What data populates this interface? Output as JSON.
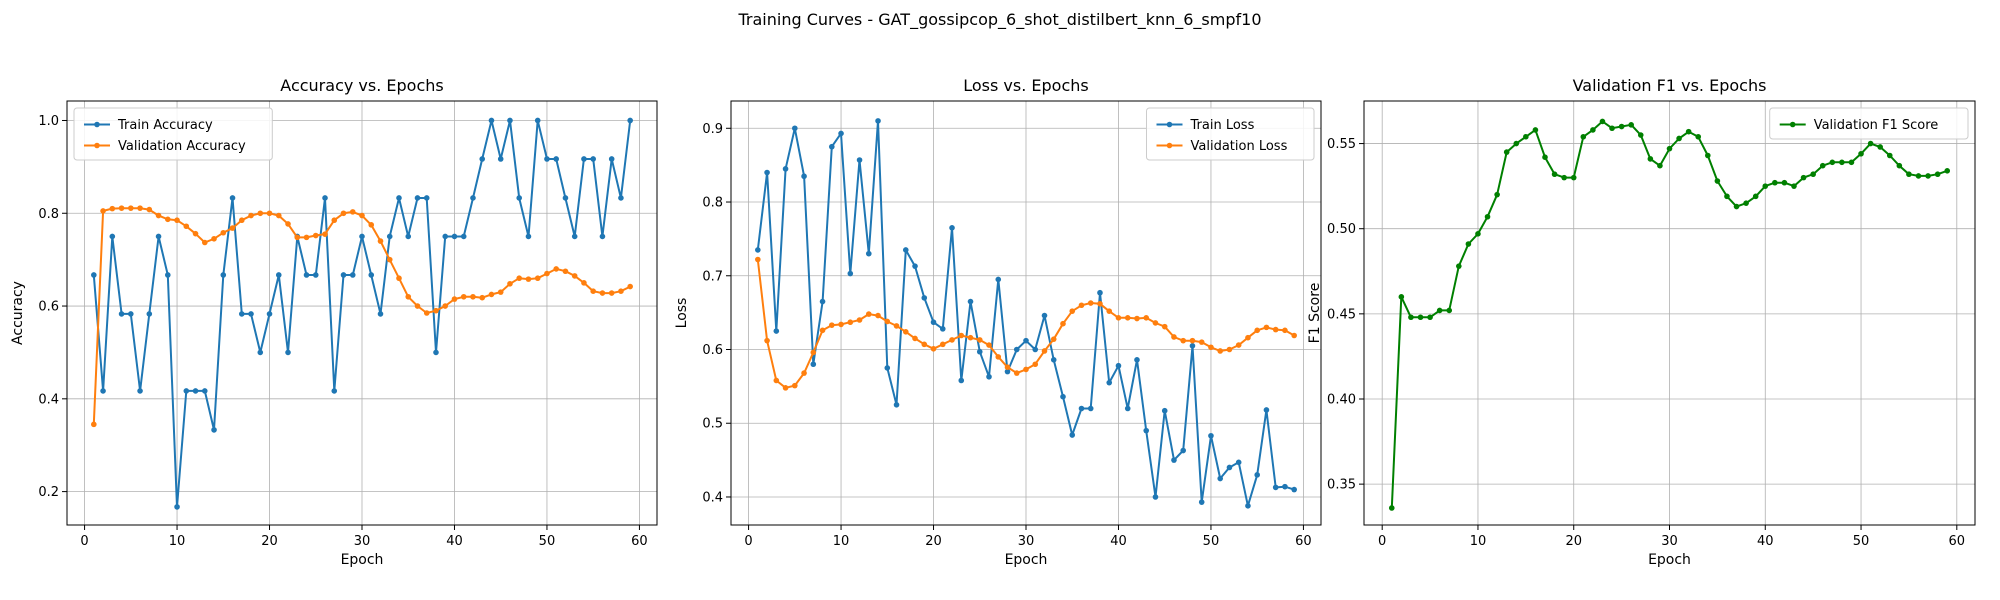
{
  "figure": {
    "title": "Training Curves - GAT_gossipcop_6_shot_distilbert_knn_6_smpf10"
  },
  "colors": {
    "train": "#1f77b4",
    "validation": "#ff7f0e",
    "f1": "#008000",
    "grid": "#b0b0b0"
  },
  "chart_data": [
    {
      "type": "line",
      "title": "Accuracy vs. Epochs",
      "xlabel": "Epoch",
      "ylabel": "Accuracy",
      "xlim": [
        -1.9,
        61.9
      ],
      "ylim": [
        0.128,
        1.042
      ],
      "xticks": [
        0,
        10,
        20,
        30,
        40,
        50,
        60
      ],
      "yticks": [
        0.2,
        0.4,
        0.6,
        0.8,
        1.0
      ],
      "ytick_labels": [
        "0.2",
        "0.4",
        "0.6",
        "0.8",
        "1.0"
      ],
      "grid": true,
      "legend_position": "upper-left",
      "x": [
        1,
        2,
        3,
        4,
        5,
        6,
        7,
        8,
        9,
        10,
        11,
        12,
        13,
        14,
        15,
        16,
        17,
        18,
        19,
        20,
        21,
        22,
        23,
        24,
        25,
        26,
        27,
        28,
        29,
        30,
        31,
        32,
        33,
        34,
        35,
        36,
        37,
        38,
        39,
        40,
        41,
        42,
        43,
        44,
        45,
        46,
        47,
        48,
        49,
        50,
        51,
        52,
        53,
        54,
        55,
        56,
        57,
        58,
        59
      ],
      "series": [
        {
          "name": "Train Accuracy",
          "color": "#1f77b4",
          "values": [
            0.667,
            0.417,
            0.75,
            0.583,
            0.583,
            0.417,
            0.583,
            0.75,
            0.667,
            0.167,
            0.417,
            0.417,
            0.417,
            0.333,
            0.667,
            0.833,
            0.583,
            0.583,
            0.5,
            0.583,
            0.667,
            0.5,
            0.75,
            0.667,
            0.667,
            0.833,
            0.417,
            0.667,
            0.667,
            0.75,
            0.667,
            0.583,
            0.75,
            0.833,
            0.75,
            0.833,
            0.833,
            0.5,
            0.75,
            0.75,
            0.75,
            0.833,
            0.917,
            1.0,
            0.917,
            1.0,
            0.833,
            0.75,
            1.0,
            0.917,
            0.917,
            0.833,
            0.75,
            0.917,
            0.917,
            0.75,
            0.917,
            0.833,
            1.0
          ]
        },
        {
          "name": "Validation Accuracy",
          "color": "#ff7f0e",
          "values": [
            0.345,
            0.805,
            0.81,
            0.811,
            0.811,
            0.811,
            0.808,
            0.795,
            0.787,
            0.785,
            0.772,
            0.756,
            0.737,
            0.745,
            0.758,
            0.768,
            0.785,
            0.795,
            0.8,
            0.8,
            0.795,
            0.777,
            0.748,
            0.748,
            0.752,
            0.755,
            0.785,
            0.8,
            0.803,
            0.795,
            0.775,
            0.74,
            0.7,
            0.66,
            0.62,
            0.6,
            0.585,
            0.59,
            0.6,
            0.615,
            0.62,
            0.62,
            0.618,
            0.625,
            0.63,
            0.648,
            0.66,
            0.658,
            0.66,
            0.67,
            0.68,
            0.675,
            0.665,
            0.65,
            0.632,
            0.628,
            0.628,
            0.632,
            0.642
          ]
        }
      ]
    },
    {
      "type": "line",
      "title": "Loss vs. Epochs",
      "xlabel": "Epoch",
      "ylabel": "Loss",
      "xlim": [
        -1.9,
        61.9
      ],
      "ylim": [
        0.362,
        0.937
      ],
      "xticks": [
        0,
        10,
        20,
        30,
        40,
        50,
        60
      ],
      "yticks": [
        0.4,
        0.5,
        0.6,
        0.7,
        0.8,
        0.9
      ],
      "ytick_labels": [
        "0.4",
        "0.5",
        "0.6",
        "0.7",
        "0.8",
        "0.9"
      ],
      "grid": true,
      "legend_position": "upper-right",
      "x": [
        1,
        2,
        3,
        4,
        5,
        6,
        7,
        8,
        9,
        10,
        11,
        12,
        13,
        14,
        15,
        16,
        17,
        18,
        19,
        20,
        21,
        22,
        23,
        24,
        25,
        26,
        27,
        28,
        29,
        30,
        31,
        32,
        33,
        34,
        35,
        36,
        37,
        38,
        39,
        40,
        41,
        42,
        43,
        44,
        45,
        46,
        47,
        48,
        49,
        50,
        51,
        52,
        53,
        54,
        55,
        56,
        57,
        58,
        59
      ],
      "series": [
        {
          "name": "Train Loss",
          "color": "#1f77b4",
          "values": [
            0.735,
            0.84,
            0.625,
            0.845,
            0.9,
            0.835,
            0.58,
            0.665,
            0.875,
            0.893,
            0.703,
            0.857,
            0.73,
            0.91,
            0.575,
            0.525,
            0.735,
            0.713,
            0.67,
            0.637,
            0.628,
            0.765,
            0.558,
            0.665,
            0.597,
            0.563,
            0.695,
            0.57,
            0.6,
            0.612,
            0.6,
            0.646,
            0.586,
            0.536,
            0.484,
            0.52,
            0.52,
            0.677,
            0.555,
            0.578,
            0.52,
            0.586,
            0.49,
            0.4,
            0.517,
            0.45,
            0.463,
            0.605,
            0.393,
            0.483,
            0.425,
            0.44,
            0.447,
            0.388,
            0.43,
            0.518,
            0.413,
            0.414,
            0.41
          ]
        },
        {
          "name": "Validation Loss",
          "color": "#ff7f0e",
          "values": [
            0.722,
            0.612,
            0.558,
            0.548,
            0.551,
            0.568,
            0.596,
            0.626,
            0.633,
            0.634,
            0.637,
            0.64,
            0.648,
            0.646,
            0.638,
            0.632,
            0.624,
            0.615,
            0.607,
            0.601,
            0.607,
            0.613,
            0.619,
            0.616,
            0.613,
            0.606,
            0.59,
            0.576,
            0.568,
            0.573,
            0.58,
            0.598,
            0.614,
            0.635,
            0.652,
            0.66,
            0.663,
            0.662,
            0.652,
            0.643,
            0.643,
            0.642,
            0.643,
            0.636,
            0.631,
            0.617,
            0.612,
            0.612,
            0.61,
            0.603,
            0.598,
            0.6,
            0.606,
            0.616,
            0.626,
            0.63,
            0.627,
            0.626,
            0.619
          ]
        }
      ]
    },
    {
      "type": "line",
      "title": "Validation F1 vs. Epochs",
      "xlabel": "Epoch",
      "ylabel": "F1 Score",
      "xlim": [
        -1.9,
        61.9
      ],
      "ylim": [
        0.326,
        0.575
      ],
      "xticks": [
        0,
        10,
        20,
        30,
        40,
        50,
        60
      ],
      "yticks": [
        0.35,
        0.4,
        0.45,
        0.5,
        0.55
      ],
      "ytick_labels": [
        "0.35",
        "0.40",
        "0.45",
        "0.50",
        "0.55"
      ],
      "grid": true,
      "legend_position": "upper-right",
      "x": [
        1,
        2,
        3,
        4,
        5,
        6,
        7,
        8,
        9,
        10,
        11,
        12,
        13,
        14,
        15,
        16,
        17,
        18,
        19,
        20,
        21,
        22,
        23,
        24,
        25,
        26,
        27,
        28,
        29,
        30,
        31,
        32,
        33,
        34,
        35,
        36,
        37,
        38,
        39,
        40,
        41,
        42,
        43,
        44,
        45,
        46,
        47,
        48,
        49,
        50,
        51,
        52,
        53,
        54,
        55,
        56,
        57,
        58,
        59
      ],
      "series": [
        {
          "name": "Validation F1 Score",
          "color": "#008000",
          "values": [
            0.336,
            0.46,
            0.448,
            0.448,
            0.448,
            0.452,
            0.452,
            0.478,
            0.491,
            0.497,
            0.507,
            0.52,
            0.545,
            0.55,
            0.554,
            0.558,
            0.542,
            0.532,
            0.53,
            0.53,
            0.554,
            0.558,
            0.563,
            0.559,
            0.56,
            0.561,
            0.555,
            0.541,
            0.537,
            0.547,
            0.553,
            0.557,
            0.554,
            0.543,
            0.528,
            0.519,
            0.513,
            0.515,
            0.519,
            0.525,
            0.527,
            0.527,
            0.525,
            0.53,
            0.532,
            0.537,
            0.539,
            0.539,
            0.539,
            0.544,
            0.55,
            0.548,
            0.543,
            0.537,
            0.532,
            0.531,
            0.531,
            0.532,
            0.534
          ]
        }
      ]
    }
  ]
}
